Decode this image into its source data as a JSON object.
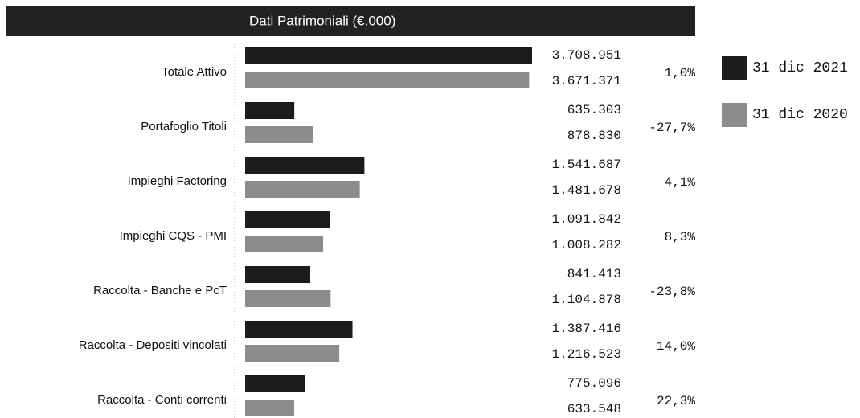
{
  "chart_data": {
    "type": "bar",
    "orientation": "horizontal",
    "title": "Dati Patrimoniali (€.000)",
    "categories": [
      "Totale Attivo",
      "Portafoglio Titoli",
      "Impieghi Factoring",
      "Impieghi CQS - PMI",
      "Raccolta - Banche e PcT",
      "Raccolta - Depositi vincolati",
      "Raccolta - Conti correnti"
    ],
    "series": [
      {
        "name": "31 dic 2021",
        "color": "#1c1c1c",
        "values": [
          3708951,
          635303,
          1541687,
          1091842,
          841413,
          1387416,
          775096
        ],
        "value_labels": [
          "3.708.951",
          "635.303",
          "1.541.687",
          "1.091.842",
          "841.413",
          "1.387.416",
          "775.096"
        ]
      },
      {
        "name": "31 dic 2020",
        "color": "#8c8c8c",
        "values": [
          3671371,
          878830,
          1481678,
          1008282,
          1104878,
          1216523,
          633548
        ],
        "value_labels": [
          "3.671.371",
          "878.830",
          "1.481.678",
          "1.008.282",
          "1.104.878",
          "1.216.523",
          "633.548"
        ]
      }
    ],
    "changes": [
      "1,0%",
      "-27,7%",
      "4,1%",
      "8,3%",
      "-23,8%",
      "14,0%",
      "22,3%"
    ],
    "legend": "right"
  }
}
